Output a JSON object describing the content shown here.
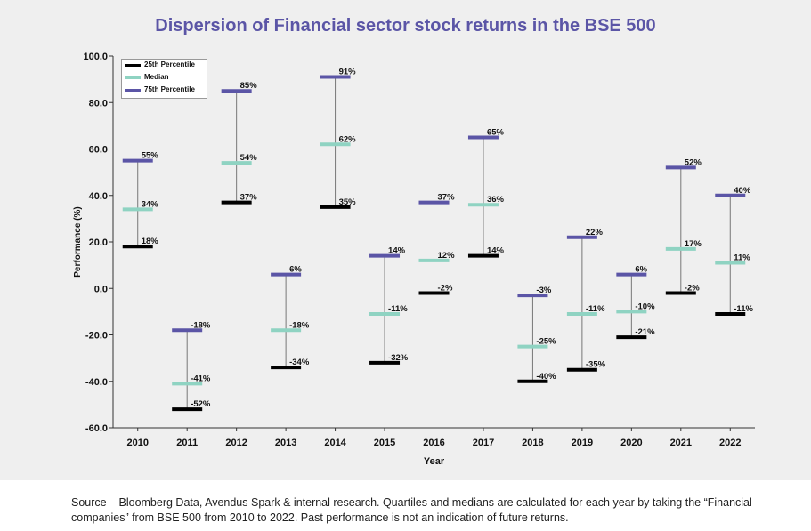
{
  "title": "Dispersion of Financial sector stock returns in the BSE 500",
  "source_note": "Source – Bloomberg Data, Avendus Spark & internal research. Quartiles and medians are calculated for each year by taking the “Financial companies” from BSE 500 from 2010 to 2022. Past performance is not an indication of future returns.",
  "colors": {
    "p25": "#000000",
    "median": "#8fd3c2",
    "p75": "#5b55a6",
    "title": "#5b55a6",
    "panel_bg": "#efefef"
  },
  "chart_data": {
    "type": "range",
    "xlabel": "Year",
    "ylabel": "Performance (%)",
    "ylim": [
      -60,
      100
    ],
    "yticks": [
      "-60.0",
      "-40.0",
      "-20.0",
      "0.0",
      "20.0",
      "40.0",
      "60.0",
      "80.0",
      "100.0"
    ],
    "categories": [
      "2010",
      "2011",
      "2012",
      "2013",
      "2014",
      "2015",
      "2016",
      "2017",
      "2018",
      "2019",
      "2020",
      "2021",
      "2022"
    ],
    "legend_position": "top-left",
    "grid": false,
    "series": [
      {
        "name": "25th Percentile",
        "key": "p25",
        "values": [
          18,
          -52,
          37,
          -34,
          35,
          -32,
          -2,
          14,
          -40,
          -35,
          -21,
          -2,
          -11
        ],
        "labels": [
          "18%",
          "-52%",
          "37%",
          "-34%",
          "35%",
          "-32%",
          "-2%",
          "14%",
          "-40%",
          "-35%",
          "-21%",
          "-2%",
          "-11%"
        ]
      },
      {
        "name": "Median",
        "key": "median",
        "values": [
          34,
          -41,
          54,
          -18,
          62,
          -11,
          12,
          36,
          -25,
          -11,
          -10,
          17,
          11
        ],
        "labels": [
          "34%",
          "-41%",
          "54%",
          "-18%",
          "62%",
          "-11%",
          "12%",
          "36%",
          "-25%",
          "-11%",
          "-10%",
          "17%",
          "11%"
        ]
      },
      {
        "name": "75th Percentile",
        "key": "p75",
        "values": [
          55,
          -18,
          85,
          6,
          91,
          14,
          37,
          65,
          -3,
          22,
          6,
          52,
          40
        ],
        "labels": [
          "55%",
          "-18%",
          "85%",
          "6%",
          "91%",
          "14%",
          "37%",
          "65%",
          "-3%",
          "22%",
          "6%",
          "52%",
          "40%"
        ]
      }
    ]
  }
}
